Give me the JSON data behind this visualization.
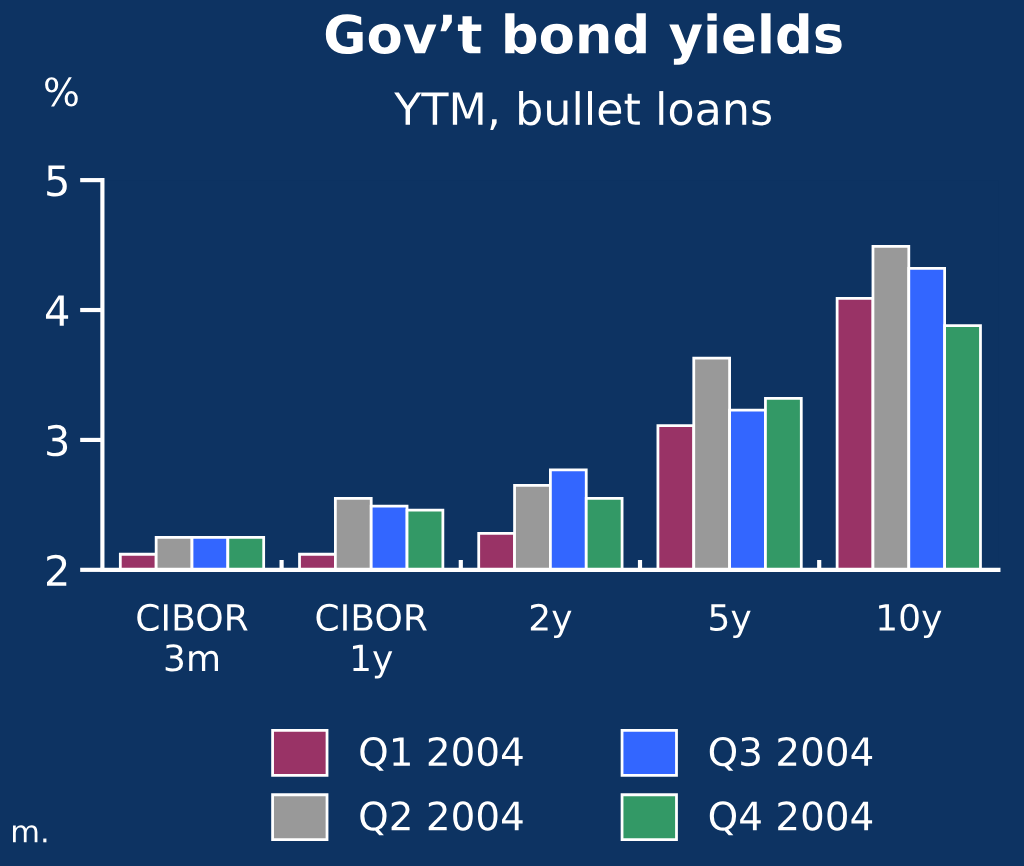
{
  "chart_data": {
    "type": "bar",
    "title": "Gov’t bond yields",
    "subtitle": "YTM, bullet loans",
    "ylabel": "%",
    "categories": [
      "CIBOR\n3m",
      "CIBOR\n1y",
      "2y",
      "5y",
      "10y"
    ],
    "series": [
      {
        "name": "Q1 2004",
        "color": "#993366",
        "values": [
          2.12,
          2.12,
          2.28,
          3.11,
          4.09
        ]
      },
      {
        "name": "Q2 2004",
        "color": "#999999",
        "values": [
          2.25,
          2.55,
          2.65,
          3.63,
          4.49
        ]
      },
      {
        "name": "Q3 2004",
        "color": "#3366ff",
        "values": [
          2.25,
          2.49,
          2.77,
          3.23,
          4.32
        ]
      },
      {
        "name": "Q4 2004",
        "color": "#339966",
        "values": [
          2.25,
          2.46,
          2.55,
          3.32,
          3.88
        ]
      }
    ],
    "ylim": [
      2,
      5
    ],
    "yticks": [
      2,
      3,
      4,
      5
    ],
    "grid": false,
    "legend": "bottom",
    "annotations": [
      "m."
    ]
  }
}
